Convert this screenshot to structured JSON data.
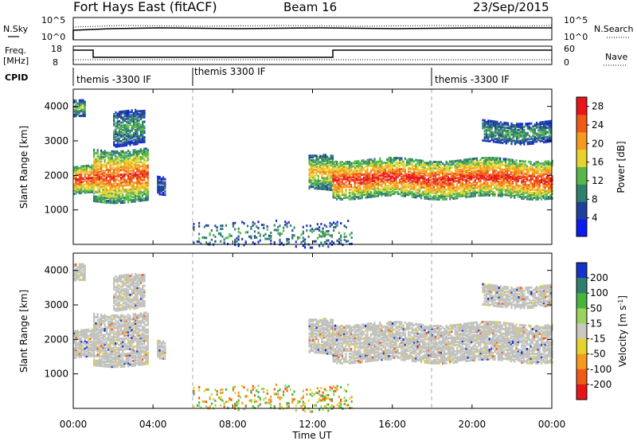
{
  "header": {
    "radar_title": "Fort Hays East (fitACF)",
    "beam": "Beam 16",
    "date": "23/Sep/2015"
  },
  "sky_panel": {
    "left_label": "N.Sky",
    "right_label": "N.Search",
    "left_ticks": [
      "10^5",
      "10^0"
    ],
    "right_ticks": [
      "10^5",
      "10^0"
    ]
  },
  "freq_panel": {
    "left_label_1": "Freq.",
    "left_label_2": "[MHz]",
    "right_label": "Nave",
    "left_ticks": [
      "18",
      "8"
    ],
    "right_ticks": [
      "60",
      "0"
    ]
  },
  "cpid": {
    "label": "CPID",
    "segments": [
      {
        "start_hour": 0,
        "text": "themis -3300 IF"
      },
      {
        "start_hour": 6,
        "text": "themis 3300 IF"
      },
      {
        "start_hour": 18,
        "text": "themis -3300 IF"
      }
    ]
  },
  "time_axis": {
    "label": "Time UT",
    "tick_labels": [
      "00:00",
      "04:00",
      "08:00",
      "12:00",
      "16:00",
      "20:00",
      "00:00"
    ]
  },
  "chart_data": [
    {
      "type": "heatmap",
      "title": "",
      "xlabel": "Time UT",
      "ylabel": "Slant Range [km]",
      "xlim": [
        0,
        24
      ],
      "ylim": [
        0,
        4500
      ],
      "yticks": [
        "1000",
        "2000",
        "3000",
        "4000"
      ],
      "colorbar": {
        "label": "Power [dB]",
        "ticks": [
          "4",
          "8",
          "12",
          "16",
          "20",
          "24",
          "28"
        ],
        "range": [
          0,
          30
        ],
        "colors": [
          "#0a1cf0",
          "#1f3f9c",
          "#2f7f6e",
          "#55b848",
          "#e8d22c",
          "#f59a1c",
          "#ef5a16",
          "#e8141a"
        ]
      },
      "echo_regions": [
        {
          "t_start": 0.0,
          "t_end": 1.0,
          "range_low": 1500,
          "range_high": 2300,
          "peak_db": 28
        },
        {
          "t_start": 0.0,
          "t_end": 0.6,
          "range_low": 3700,
          "range_high": 4200,
          "peak_db": 14
        },
        {
          "t_start": 1.0,
          "t_end": 3.7,
          "range_low": 1300,
          "range_high": 2800,
          "peak_db": 26
        },
        {
          "t_start": 2.0,
          "t_end": 3.6,
          "range_low": 2900,
          "range_high": 3900,
          "peak_db": 12
        },
        {
          "t_start": 4.2,
          "t_end": 4.6,
          "range_low": 1500,
          "range_high": 2000,
          "peak_db": 8
        },
        {
          "t_start": 11.8,
          "t_end": 13.0,
          "range_low": 1600,
          "range_high": 2600,
          "peak_db": 20
        },
        {
          "t_start": 13.0,
          "t_end": 24.0,
          "range_low": 1400,
          "range_high": 2500,
          "peak_db": 28
        },
        {
          "t_start": 20.5,
          "t_end": 24.0,
          "range_low": 3000,
          "range_high": 3600,
          "peak_db": 12
        },
        {
          "t_start": 6.0,
          "t_end": 14.0,
          "range_low": 0,
          "range_high": 700,
          "peak_db": 12
        }
      ]
    },
    {
      "type": "heatmap",
      "title": "",
      "xlabel": "Time UT",
      "ylabel": "Slant Range [km]",
      "xlim": [
        0,
        24
      ],
      "ylim": [
        0,
        4500
      ],
      "yticks": [
        "1000",
        "2000",
        "3000",
        "4000"
      ],
      "colorbar": {
        "label": "Velocity [m s^-1]",
        "ticks": [
          "200",
          "100",
          "50",
          "15",
          "-15",
          "-50",
          "-100",
          "-200"
        ],
        "range": [
          -250,
          250
        ],
        "colors": [
          "#1632c8",
          "#2f7f6e",
          "#45b53c",
          "#9ad25a",
          "#c8c8c0",
          "#e8d22c",
          "#f59a1c",
          "#ef5a16",
          "#e8141a"
        ]
      },
      "ground_scatter_color": "#c0c0bc",
      "echo_regions": [
        {
          "t_start": 0.0,
          "t_end": 3.7,
          "range_low": 1200,
          "range_high": 2900,
          "note": "ground scatter"
        },
        {
          "t_start": 13.0,
          "t_end": 24.0,
          "range_low": 1400,
          "range_high": 2500,
          "note": "ground scatter"
        }
      ]
    }
  ]
}
